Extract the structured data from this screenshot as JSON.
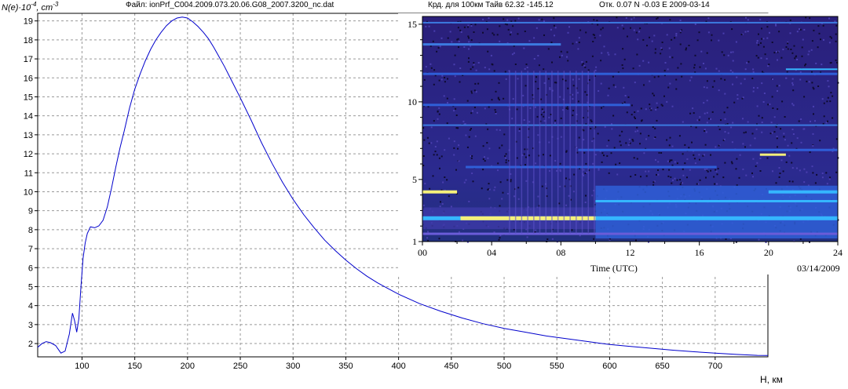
{
  "header": {
    "file": "Файл: ionPrf_C004.2009.073.20.06.G08_2007.3200_nc.dat",
    "coords": "Крд. для 100км Тайв 62.32 -145.12",
    "offset": "Отк. 0.07 N -0.03 E 2009-03-14"
  },
  "chart_data": [
    {
      "type": "line",
      "ylabel_base": "N(e)·10",
      "ylabel_exp": "-4",
      "ylabel_unit": ", cm",
      "ylabel_unit_exp": "-3",
      "xlabel": "H, км",
      "xlim": [
        58,
        750
      ],
      "ylim": [
        1.3,
        19.4
      ],
      "grid": true,
      "x_ticks": [
        100,
        150,
        200,
        250,
        300,
        350,
        400,
        450,
        500,
        550,
        600,
        650,
        700
      ],
      "y_ticks": [
        2,
        3,
        4,
        5,
        6,
        7,
        8,
        9,
        10,
        11,
        12,
        13,
        14,
        15,
        16,
        17,
        18,
        19
      ],
      "series": [
        {
          "color": "#0000cc",
          "x": [
            58,
            62,
            66,
            70,
            75,
            80,
            84,
            88,
            91,
            93,
            95,
            97,
            99,
            101,
            103,
            105,
            108,
            112,
            116,
            120,
            124,
            128,
            132,
            136,
            140,
            145,
            150,
            155,
            160,
            165,
            170,
            175,
            180,
            185,
            190,
            195,
            200,
            205,
            210,
            215,
            220,
            225,
            230,
            235,
            240,
            245,
            250,
            260,
            270,
            280,
            290,
            300,
            310,
            320,
            330,
            340,
            350,
            360,
            370,
            380,
            390,
            400,
            420,
            440,
            460,
            480,
            500,
            520,
            540,
            560,
            580,
            600,
            620,
            640,
            660,
            680,
            700,
            720,
            740,
            750
          ],
          "y": [
            1.8,
            2.0,
            2.1,
            2.05,
            1.9,
            1.5,
            1.6,
            2.5,
            3.6,
            3.2,
            2.6,
            3.3,
            5.0,
            6.5,
            7.3,
            7.8,
            8.15,
            8.1,
            8.2,
            8.5,
            9.2,
            10.2,
            11.3,
            12.3,
            13.2,
            14.4,
            15.4,
            16.2,
            16.9,
            17.5,
            18.0,
            18.4,
            18.75,
            19.0,
            19.15,
            19.2,
            19.15,
            18.95,
            18.7,
            18.4,
            18.05,
            17.6,
            17.1,
            16.6,
            16.05,
            15.5,
            14.95,
            13.8,
            12.6,
            11.5,
            10.5,
            9.6,
            8.8,
            8.1,
            7.45,
            6.9,
            6.4,
            5.95,
            5.55,
            5.2,
            4.9,
            4.6,
            4.1,
            3.7,
            3.35,
            3.05,
            2.8,
            2.6,
            2.4,
            2.25,
            2.1,
            1.95,
            1.85,
            1.75,
            1.65,
            1.57,
            1.5,
            1.43,
            1.38,
            1.37
          ]
        }
      ]
    },
    {
      "type": "heatmap",
      "xlabel": "Time (UTC)",
      "date_label": "03/14/2009",
      "xlim": [
        0,
        24
      ],
      "ylim": [
        1,
        15.5
      ],
      "x_tick_labels": [
        "00",
        "04",
        "08",
        "12",
        "16",
        "20",
        "24"
      ],
      "y_tick_labels": [
        "1",
        "5",
        "10",
        "15"
      ],
      "colors": {
        "background": "#2a1f7a",
        "low": "#1c1555",
        "mid": "#2f5fd8",
        "high": "#35b6ff",
        "peak": "#f5f07a"
      }
    }
  ]
}
